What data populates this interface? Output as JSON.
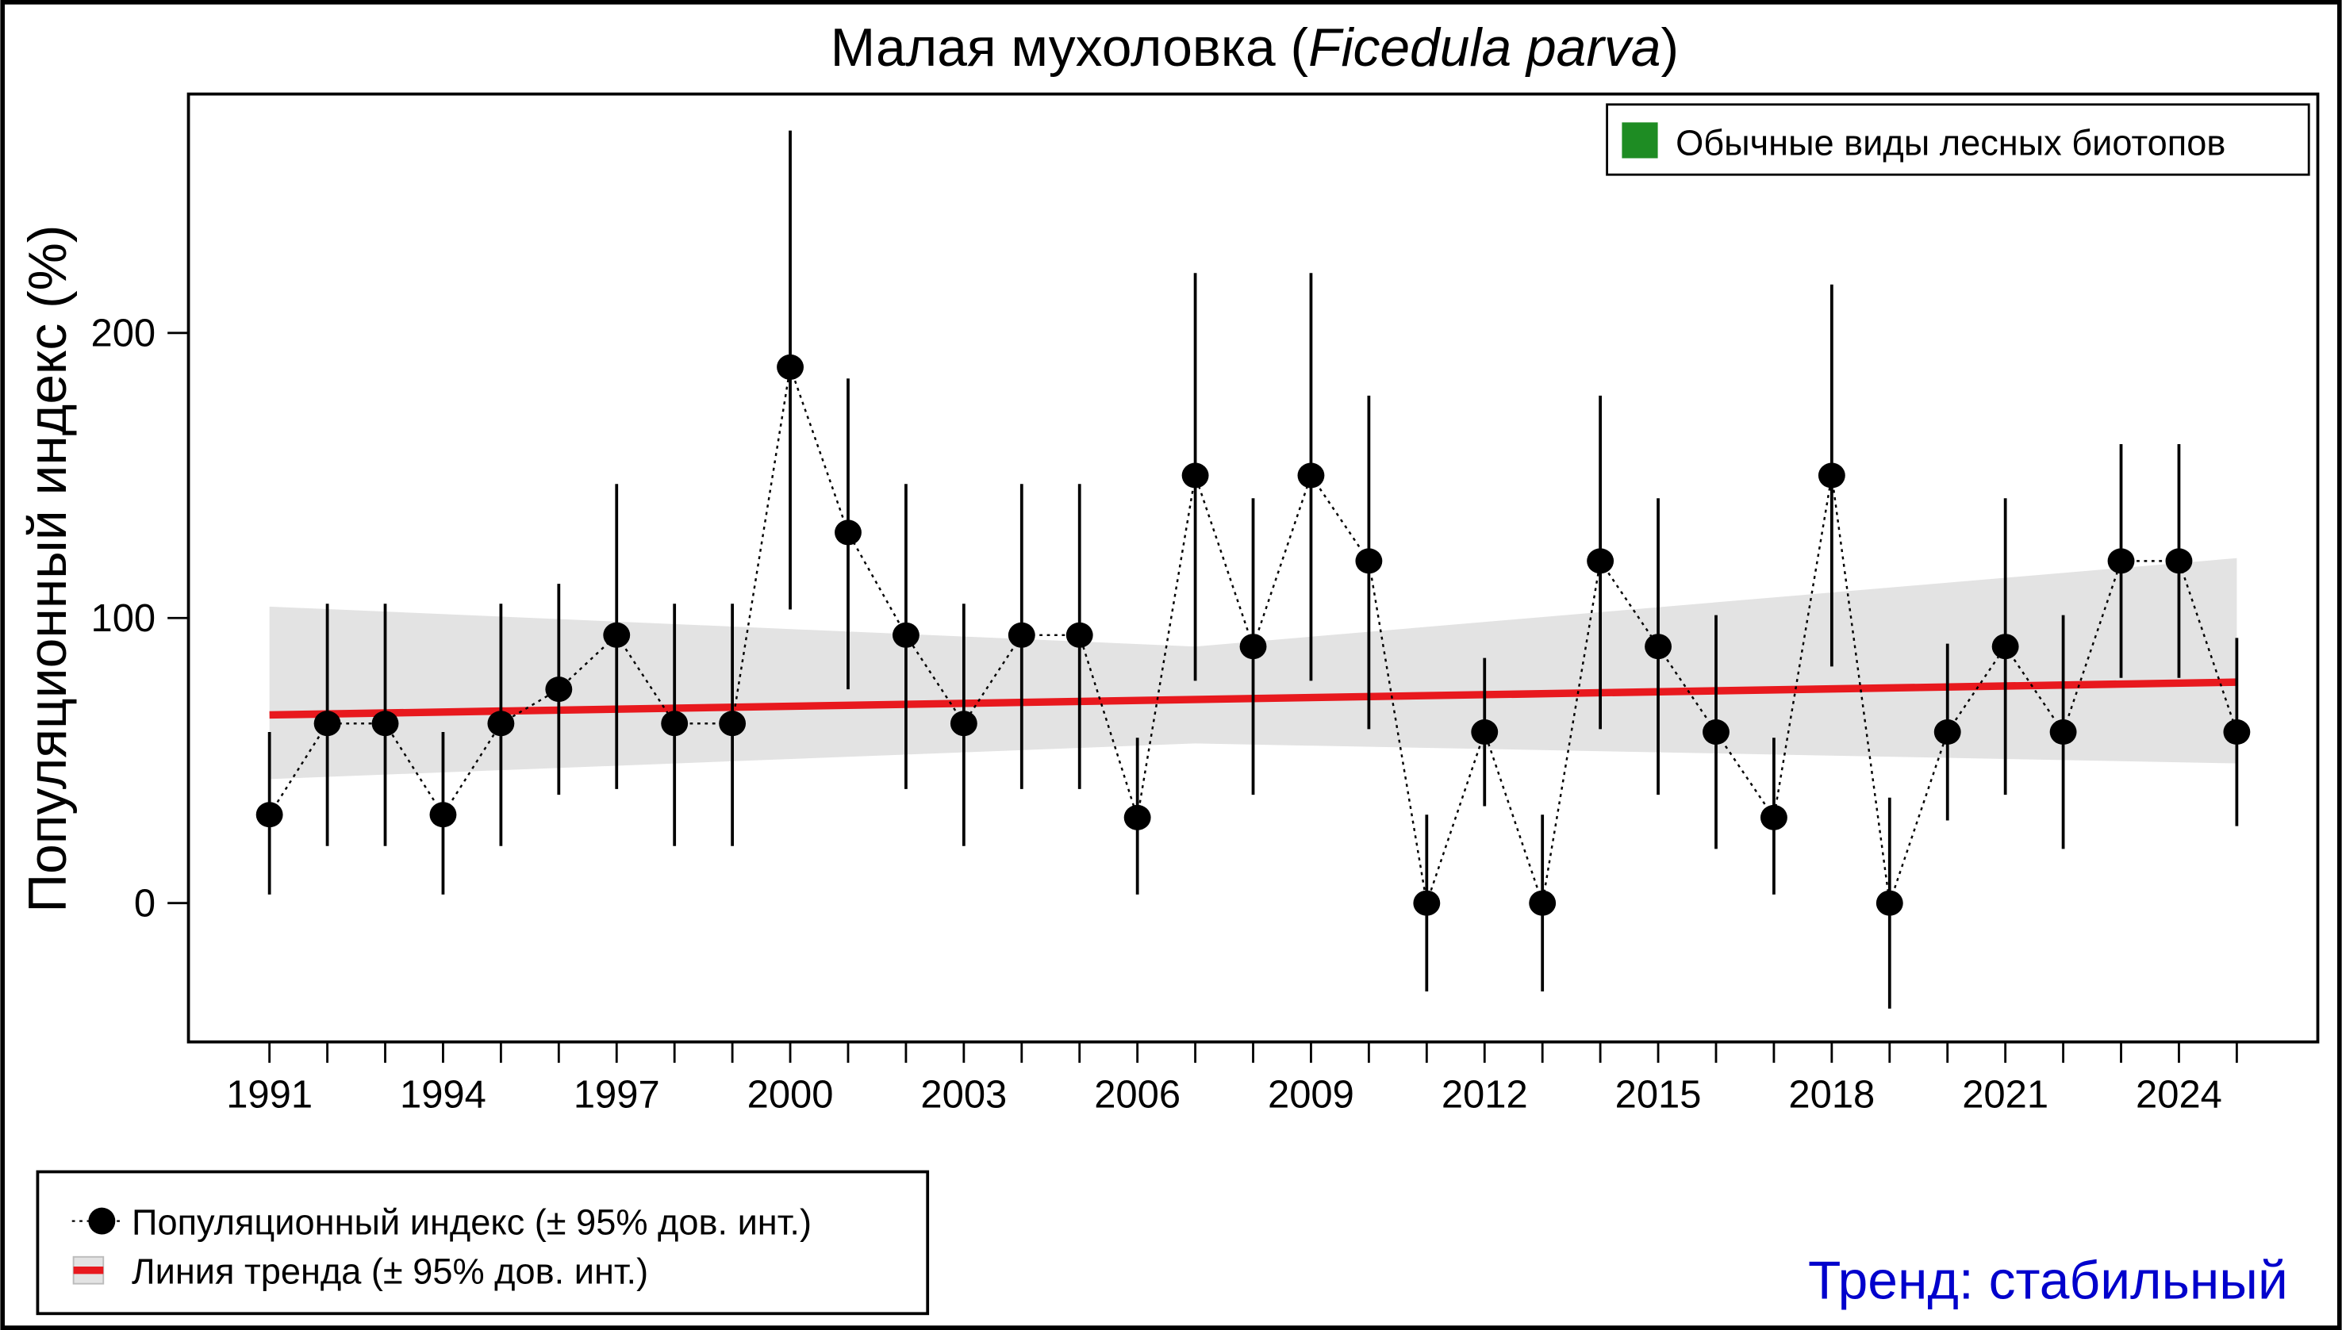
{
  "chart_data": {
    "type": "line",
    "title_main": "Малая мухоловка (",
    "title_species": "Ficedula parva",
    "title_close": ")",
    "ylabel": "Популяционный индекс (%)",
    "xlabel": "",
    "ylim": [
      -48.7,
      283.8
    ],
    "xlim": [
      1989.6,
      2026.4
    ],
    "yticks": [
      0,
      100,
      200
    ],
    "xticks": [
      1991,
      1994,
      1997,
      2000,
      2003,
      2006,
      2009,
      2012,
      2015,
      2018,
      2021,
      2024
    ],
    "grid": false,
    "years": [
      1991,
      1992,
      1993,
      1994,
      1995,
      1996,
      1997,
      1998,
      1999,
      2000,
      2001,
      2002,
      2003,
      2004,
      2005,
      2006,
      2007,
      2008,
      2009,
      2010,
      2011,
      2012,
      2013,
      2014,
      2015,
      2016,
      2017,
      2018,
      2019,
      2020,
      2021,
      2022,
      2023,
      2024,
      2025
    ],
    "index": [
      31,
      63,
      63,
      31,
      63,
      75,
      94,
      63,
      63,
      188,
      130,
      94,
      63,
      94,
      94,
      30,
      150,
      90,
      150,
      120,
      0,
      60,
      0,
      120,
      90,
      60,
      30,
      150,
      0,
      60,
      90,
      60,
      120,
      120,
      60
    ],
    "ci_lower": [
      3,
      20,
      20,
      3,
      20,
      38,
      40,
      20,
      20,
      103,
      75,
      40,
      20,
      40,
      40,
      3,
      78,
      38,
      78,
      61,
      -31,
      34,
      -31,
      61,
      38,
      19,
      3,
      83,
      -37,
      29,
      38,
      19,
      79,
      79,
      27
    ],
    "ci_upper": [
      60,
      105,
      105,
      60,
      105,
      112,
      147,
      105,
      105,
      271,
      184,
      147,
      105,
      147,
      147,
      58,
      221,
      142,
      221,
      178,
      31,
      86,
      31,
      178,
      142,
      101,
      58,
      217,
      37,
      91,
      142,
      101,
      161,
      161,
      93
    ],
    "trend": {
      "start": [
        1991,
        66
      ],
      "end": [
        2025,
        77.5
      ]
    },
    "trend_band": {
      "years": [
        1991,
        2007,
        2025
      ],
      "upper": [
        104,
        90,
        121
      ],
      "lower": [
        43.5,
        56,
        49
      ]
    },
    "legend_group": "Обычные виды лесных биотопов",
    "legend_index": "Популяционный индекс (± 95% дов. инт.)",
    "legend_trend": "Линия тренда (± 95% дов. инт.)",
    "trend_status": "Тренд: стабильный",
    "colors": {
      "group": "#1e8c23",
      "trend": "#e8191e",
      "band": "#e3e3e3",
      "status": "#0000cc",
      "points": "#000000"
    }
  }
}
